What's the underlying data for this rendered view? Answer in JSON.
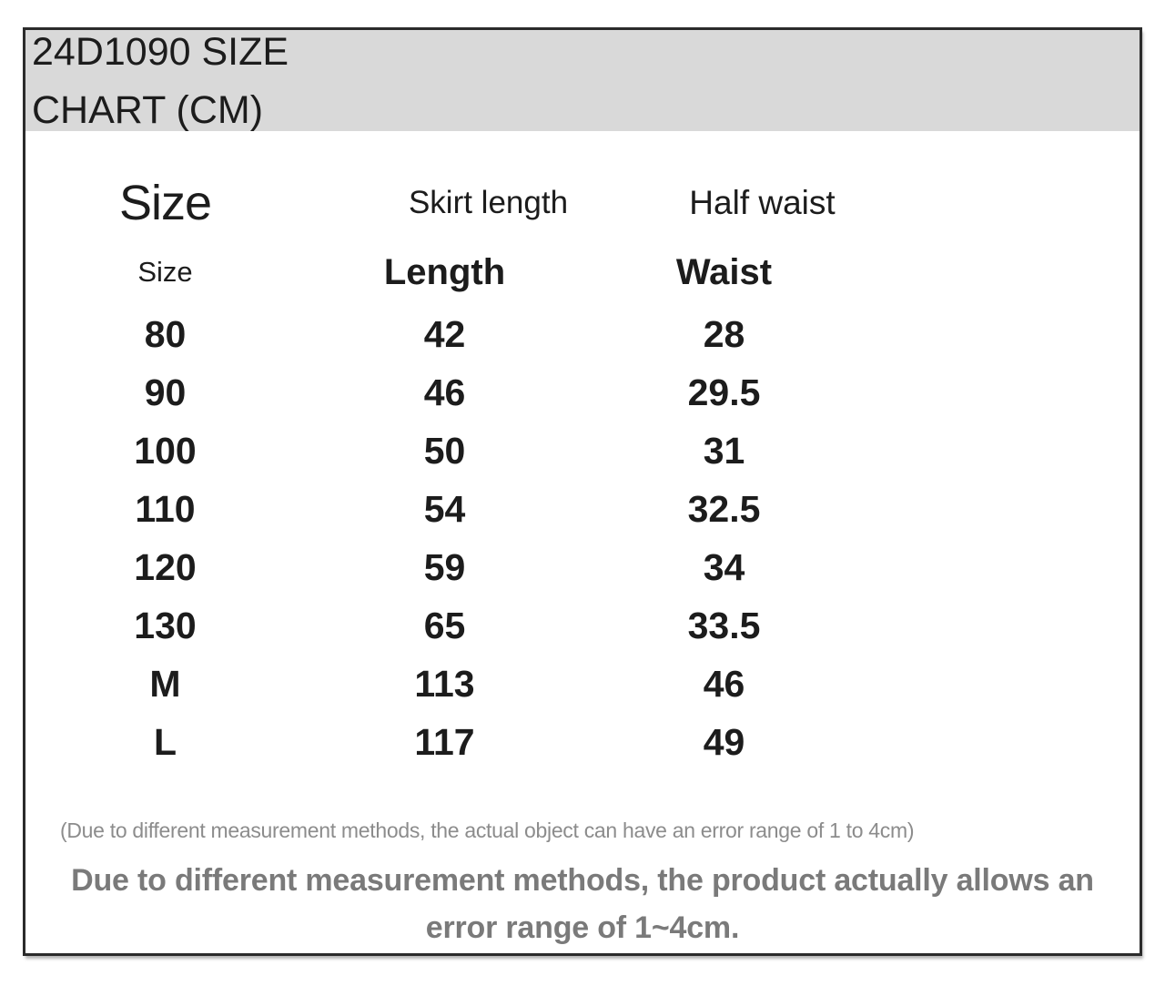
{
  "colors": {
    "banner_bg": "#d9d9d9",
    "text": "#1c1c1c",
    "border": "#2b2b2b",
    "note_gray": "#8c8c8c",
    "big_note_gray": "#7a7a7a",
    "page_bg": "#ffffff"
  },
  "banner": {
    "title_line1": "24D1090 SIZE",
    "title_line2": "CHART (CM)"
  },
  "notes": {
    "small": "(Due to different measurement methods, the actual object can have an error range of 1 to 4cm)",
    "big_line1": "Due to different measurement methods, the product actually allows an",
    "big_line2": "error range of 1~4cm."
  },
  "chart_data": {
    "type": "table",
    "title": "24D1090 SIZE CHART (CM)",
    "unit": "cm",
    "column_groups": [
      "Size",
      "Skirt length",
      "Half waist"
    ],
    "columns": [
      "Size",
      "Length",
      "Waist"
    ],
    "rows": [
      [
        "80",
        "42",
        "28"
      ],
      [
        "90",
        "46",
        "29.5"
      ],
      [
        "100",
        "50",
        "31"
      ],
      [
        "110",
        "54",
        "32.5"
      ],
      [
        "120",
        "59",
        "34"
      ],
      [
        "130",
        "65",
        "33.5"
      ],
      [
        "M",
        "113",
        "46"
      ],
      [
        "L",
        "117",
        "49"
      ]
    ]
  }
}
